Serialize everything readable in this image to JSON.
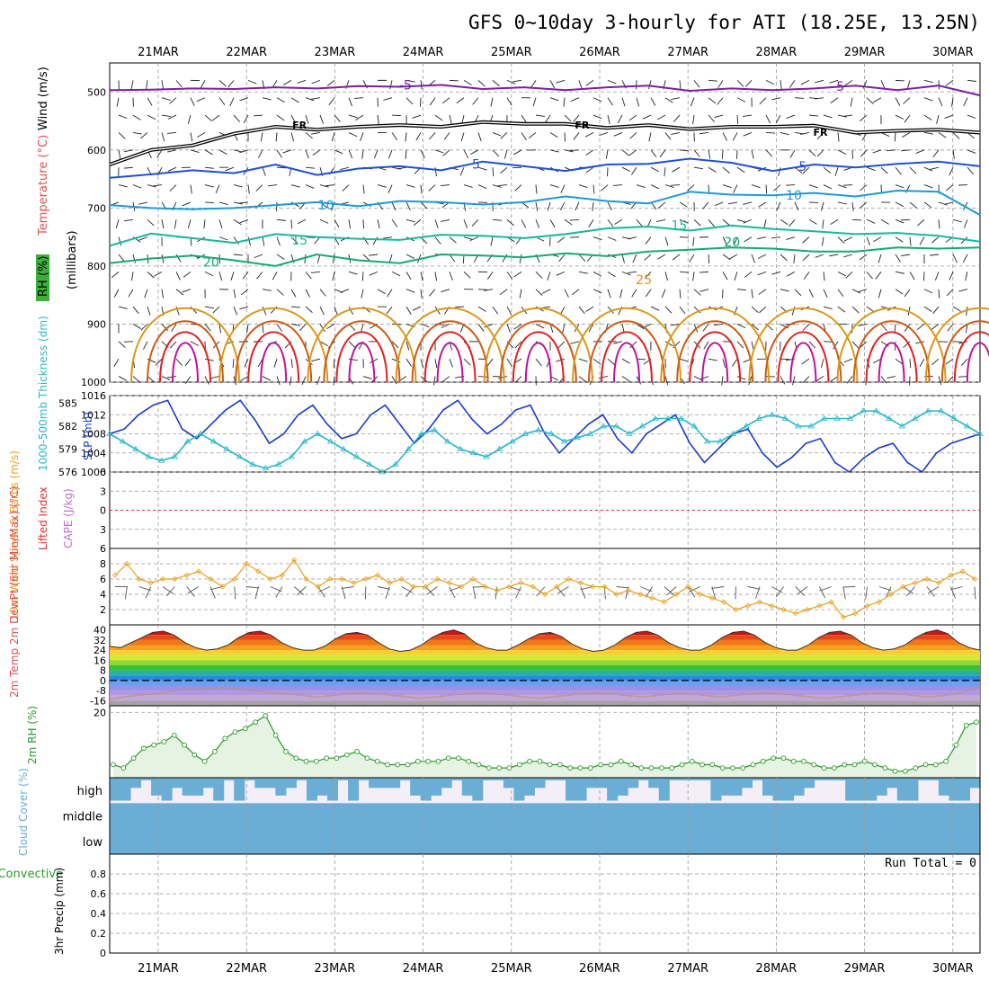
{
  "title": "GFS 0~10day 3-hourly for ATI (18.25E, 13.25N)",
  "date_labels": [
    "21MAR",
    "22MAR",
    "23MAR",
    "24MAR",
    "25MAR",
    "26MAR",
    "27MAR",
    "28MAR",
    "29MAR",
    "30MAR"
  ],
  "colors": {
    "temp_contours": {
      "-5": "#7b1fa2",
      "0": "#000000",
      "5": "#1f4fd6",
      "10": "#1b9ad8",
      "15": "#19b89a",
      "20": "#17a874",
      "25": "#d89a1a",
      "30": "#cc5a16",
      "35": "#e02020",
      "40": "#c0109a"
    },
    "slp": "#1a3acc",
    "thickness": "#2ab8c8",
    "wind10m": "#e8a020",
    "rh2m": "#2a9a2a",
    "cloud": "#6aaed6",
    "lifted_index": "#e03030",
    "cape": "#c070d0"
  },
  "chart_data": [
    {
      "panel": "upper_air",
      "type": "line",
      "ylabel_parts": [
        "RH (%)",
        "Temperature (°C)",
        "Wind (m/s)"
      ],
      "ylabel_units": "(millibars)",
      "yticks": [
        500,
        600,
        700,
        800,
        900,
        1000
      ],
      "ylim": [
        1000,
        450
      ],
      "contour_labels": [
        {
          "text": "-5",
          "day": 2.8,
          "p": 488
        },
        {
          "text": "-5",
          "day": 7.7,
          "p": 490
        },
        {
          "text": "FR",
          "day": 1.6,
          "p": 555
        },
        {
          "text": "FR",
          "day": 4.8,
          "p": 555
        },
        {
          "text": "FR",
          "day": 7.5,
          "p": 568
        },
        {
          "text": "5",
          "day": 3.6,
          "p": 624
        },
        {
          "text": "5",
          "day": 7.3,
          "p": 628
        },
        {
          "text": "10",
          "day": 1.9,
          "p": 695
        },
        {
          "text": "10",
          "day": 7.2,
          "p": 678
        },
        {
          "text": "15",
          "day": 1.6,
          "p": 755
        },
        {
          "text": "15",
          "day": 5.9,
          "p": 730
        },
        {
          "text": "20",
          "day": 0.6,
          "p": 793
        },
        {
          "text": "20",
          "day": 6.5,
          "p": 758
        },
        {
          "text": "25",
          "day": 5.5,
          "p": 823
        }
      ],
      "series": [
        {
          "name": "-5",
          "values_p": [
            497,
            496,
            494,
            495,
            492,
            494,
            490,
            491,
            488,
            495,
            492,
            497,
            492,
            489,
            498,
            494,
            497,
            494,
            489,
            497,
            489,
            506
          ]
        },
        {
          "name": "0",
          "values_p": [
            625,
            600,
            592,
            572,
            560,
            565,
            560,
            557,
            560,
            552,
            555,
            555,
            562,
            557,
            564,
            560,
            560,
            558,
            570,
            567,
            565,
            570
          ]
        },
        {
          "name": "5",
          "values_p": [
            648,
            642,
            635,
            640,
            625,
            643,
            632,
            628,
            635,
            620,
            628,
            636,
            625,
            624,
            615,
            622,
            636,
            625,
            630,
            624,
            620,
            628
          ]
        },
        {
          "name": "10",
          "values_p": [
            695,
            700,
            702,
            700,
            695,
            690,
            697,
            688,
            690,
            694,
            690,
            680,
            688,
            692,
            672,
            677,
            678,
            674,
            680,
            670,
            672,
            712
          ]
        },
        {
          "name": "15",
          "values_p": [
            765,
            744,
            752,
            760,
            745,
            750,
            753,
            755,
            746,
            748,
            752,
            745,
            735,
            732,
            739,
            730,
            736,
            740,
            745,
            743,
            748,
            758
          ]
        },
        {
          "name": "20",
          "values_p": [
            795,
            787,
            782,
            790,
            800,
            780,
            790,
            795,
            780,
            782,
            785,
            778,
            783,
            775,
            772,
            768,
            770,
            775,
            775,
            768,
            770,
            768
          ]
        }
      ]
    },
    {
      "panel": "slp_thickness",
      "type": "line",
      "ylabel_left": "1000-500mb Thickness (dm)",
      "ylabel_right": "SLP (mb)",
      "thickness_ticks": [
        576,
        579,
        582,
        585
      ],
      "slp_ticks": [
        1000,
        1004,
        1008,
        1012,
        1016
      ],
      "slp": [
        1008,
        1009,
        1012,
        1014,
        1015,
        1009,
        1007,
        1010,
        1013,
        1015,
        1011,
        1006,
        1008,
        1012,
        1014,
        1010,
        1007,
        1008,
        1012,
        1014,
        1010,
        1006,
        1009,
        1013,
        1015,
        1011,
        1008,
        1010,
        1013,
        1014,
        1008,
        1004,
        1007,
        1010,
        1012,
        1007,
        1004,
        1008,
        1010,
        1012,
        1006,
        1002,
        1005,
        1008,
        1009,
        1004,
        1001,
        1003,
        1006,
        1007,
        1002,
        1000,
        1003,
        1005,
        1006,
        1002,
        1000,
        1004,
        1006,
        1007,
        1008
      ],
      "thickness": [
        581,
        580,
        579,
        578,
        577.5,
        578,
        580,
        581,
        580,
        579,
        578,
        577,
        576.5,
        577,
        578,
        580,
        581,
        580,
        579,
        578,
        577,
        576,
        577,
        579,
        581,
        581.5,
        580,
        579,
        578.5,
        578,
        579,
        580,
        581,
        581.5,
        581,
        580,
        580.5,
        581,
        582,
        582,
        581,
        582,
        583,
        583,
        583,
        582,
        580,
        580,
        581,
        582,
        583,
        583.5,
        583,
        582,
        582,
        583,
        583,
        583,
        584,
        584,
        583,
        582,
        583,
        584,
        584,
        583,
        582,
        581
      ]
    },
    {
      "panel": "lifted_index_cape",
      "type": "line",
      "ylabel_left": "Lifted Index",
      "ylabel_right": "CAPE (J/kg)",
      "yticks": [
        -6,
        -3,
        0,
        3,
        6
      ],
      "zero_line": 0
    },
    {
      "panel": "wind10m",
      "type": "line",
      "ylabel": "10m Wind Speed & Barbs (m/s)",
      "yticks": [
        2,
        4,
        6,
        8
      ],
      "ylim": [
        0,
        10
      ],
      "values": [
        6.5,
        8,
        6,
        5.5,
        6,
        6,
        6.5,
        7,
        6,
        5,
        6,
        8,
        7,
        6,
        6.5,
        8.5,
        6,
        5,
        6,
        6,
        5.5,
        6,
        6.5,
        5.5,
        6,
        5,
        5,
        6,
        5.5,
        5,
        6,
        5,
        4.5,
        5,
        5.5,
        5,
        4,
        5,
        6,
        5.5,
        5,
        5,
        4,
        4.5,
        4,
        3.5,
        3,
        4,
        5,
        4,
        3.5,
        3,
        2,
        2.5,
        3,
        2.5,
        2,
        1.5,
        2,
        2.5,
        3,
        1,
        1.5,
        2.5,
        3,
        4,
        5,
        5.5,
        6,
        5.5,
        6.5,
        7,
        6
      ]
    },
    {
      "panel": "temp2m",
      "type": "area",
      "ylabel": "2m Temp 2m DewPt (6hr Min/Max) (°C)",
      "yticks": [
        40,
        32,
        24,
        16,
        8,
        0,
        -8,
        -16
      ],
      "temp": [
        27,
        26,
        30,
        34,
        38,
        39,
        36,
        30,
        26,
        24,
        25,
        28,
        34,
        38,
        39,
        36,
        30,
        26,
        24,
        24,
        27,
        33,
        37,
        38,
        36,
        30,
        25,
        23,
        24,
        28,
        34,
        38,
        40,
        37,
        30,
        26,
        24,
        24,
        28,
        33,
        37,
        38,
        35,
        29,
        25,
        23,
        24,
        28,
        34,
        38,
        39,
        36,
        30,
        26,
        24,
        24,
        28,
        34,
        38,
        39,
        36,
        30,
        26,
        24,
        24,
        28,
        34,
        38,
        39,
        36,
        30,
        26,
        24,
        25,
        28,
        34,
        38,
        40,
        37,
        30,
        26,
        24
      ],
      "dewpoint": [
        -15,
        -13,
        -12,
        -11,
        -10,
        -8,
        -7,
        -7,
        -6,
        -6,
        -7,
        -8,
        -9,
        -10,
        -11,
        -12,
        -13,
        -12,
        -11,
        -10,
        -10,
        -11,
        -12,
        -13,
        -14,
        -13,
        -12,
        -11,
        -10,
        -10,
        -11,
        -12,
        -13,
        -14,
        -13,
        -12,
        -11,
        -10,
        -10,
        -11,
        -12,
        -13,
        -12,
        -11,
        -10,
        -11,
        -12,
        -13,
        -12,
        -11,
        -10,
        -10,
        -11,
        -12,
        -13,
        -14,
        -13,
        -12,
        -11,
        -10,
        -10,
        -11,
        -12,
        -13,
        -12,
        -11,
        -8,
        -5
      ]
    },
    {
      "panel": "rh2m",
      "type": "line",
      "ylabel": "2m RH (%)",
      "yticks": [
        20
      ],
      "ylim": [
        0,
        22
      ],
      "values": [
        4,
        3,
        6,
        9,
        10,
        11,
        13,
        10,
        7,
        5,
        8,
        12,
        14,
        15,
        17,
        19,
        13,
        8,
        6,
        5,
        5,
        6,
        6,
        7,
        8,
        6,
        5,
        4,
        4,
        4,
        5,
        5,
        5,
        6,
        6,
        5,
        4,
        3,
        3,
        3,
        4,
        5,
        5,
        4,
        4,
        3,
        3,
        3,
        4,
        4,
        5,
        4,
        3,
        3,
        3,
        3,
        4,
        5,
        4,
        4,
        3,
        3,
        3,
        4,
        5,
        6,
        6,
        5,
        5,
        4,
        3,
        3,
        4,
        4,
        5,
        4,
        3,
        2,
        2,
        3,
        4,
        4,
        5,
        10,
        16,
        17
      ]
    },
    {
      "panel": "cloud",
      "type": "area",
      "ylabel": "Cloud Cover (%)",
      "levels": [
        "high",
        "middle",
        "low"
      ],
      "high": [
        90,
        90,
        40,
        10,
        70,
        90,
        40,
        70,
        70,
        40,
        90,
        10,
        90,
        10,
        40,
        40,
        70,
        40,
        10,
        90,
        70,
        90,
        10,
        90,
        10,
        40,
        40,
        40,
        10,
        70,
        90,
        70,
        40,
        10,
        70,
        90,
        10,
        10,
        40,
        90,
        70,
        40,
        10,
        10,
        90,
        90,
        40,
        40,
        90,
        70,
        40,
        10,
        40,
        90,
        10,
        10,
        10,
        10,
        90,
        70,
        70,
        40,
        10,
        70,
        90,
        90,
        70,
        40,
        10,
        10,
        10,
        90,
        90,
        90,
        70,
        40,
        90,
        90,
        10,
        10,
        70,
        90,
        90,
        40
      ]
    },
    {
      "panel": "precip",
      "type": "line",
      "ylabel_left": "Total / Rain Convective",
      "ylabel_right": "3hr Precip (mm)",
      "yticks": [
        0,
        0.2,
        0.4,
        0.6,
        0.8
      ],
      "ylim": [
        0,
        1
      ],
      "run_total_label": "Run Total = 0"
    }
  ]
}
